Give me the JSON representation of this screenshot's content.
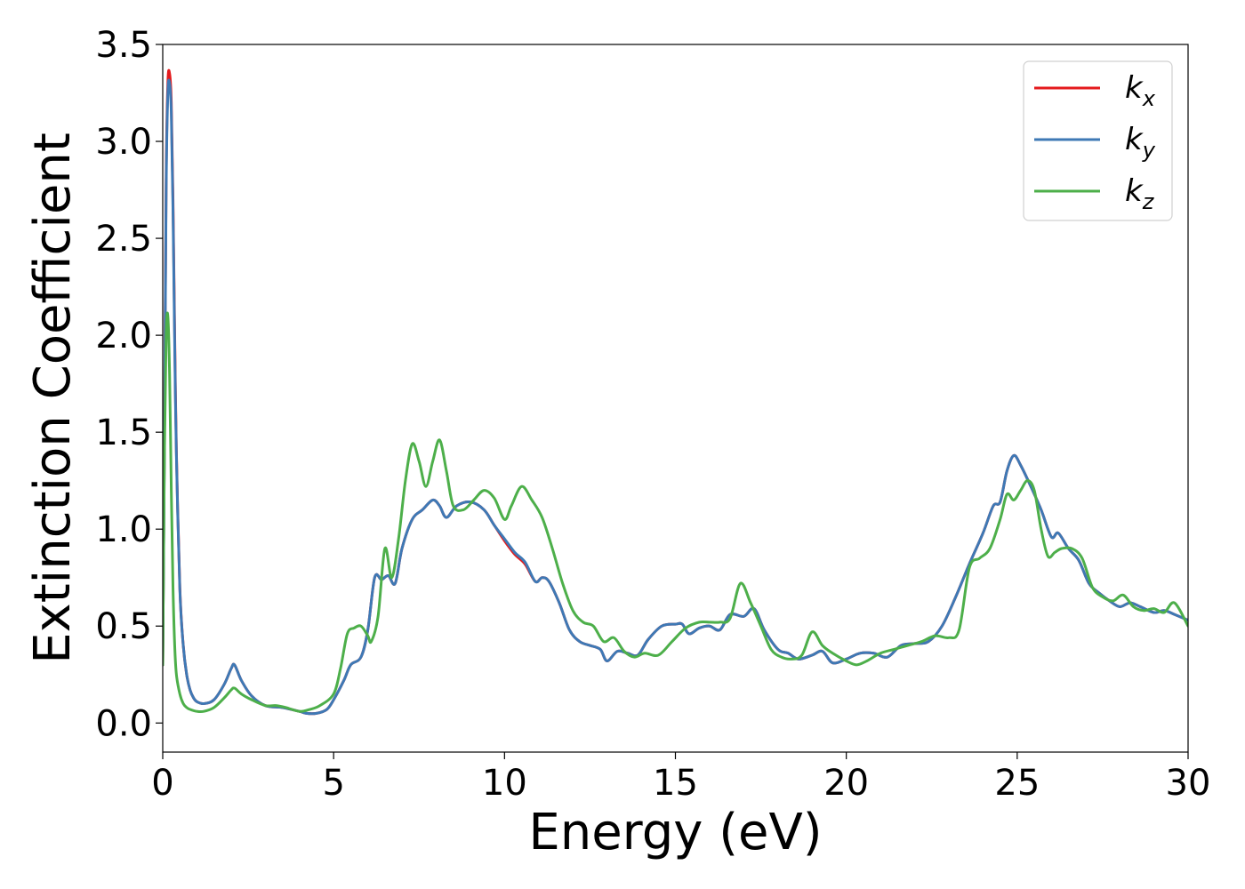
{
  "chart_data": {
    "type": "line",
    "title": "",
    "xlabel": "Energy (eV)",
    "ylabel": "Extinction Coefficient",
    "xlim": [
      0,
      30
    ],
    "ylim": [
      -0.15,
      3.5
    ],
    "xticks": [
      0,
      5,
      10,
      15,
      20,
      25,
      30
    ],
    "xtick_labels": [
      "0",
      "5",
      "10",
      "15",
      "20",
      "25",
      "30"
    ],
    "yticks": [
      0.0,
      0.5,
      1.0,
      1.5,
      2.0,
      2.5,
      3.0,
      3.5
    ],
    "ytick_labels": [
      "0.0",
      "0.5",
      "1.0",
      "1.5",
      "2.0",
      "2.5",
      "3.0",
      "3.5"
    ],
    "grid": false,
    "legend_position": "top-right",
    "series": [
      {
        "name": "k_x",
        "label_main": "k",
        "label_sub": "x",
        "color": "#e41a1c",
        "x": [
          0,
          0.05,
          0.1,
          0.15,
          0.2,
          0.25,
          0.3,
          0.35,
          0.4,
          0.5,
          0.6,
          0.7,
          0.8,
          0.9,
          1.0,
          1.2,
          1.5,
          1.8,
          2.0,
          2.1,
          2.3,
          2.6,
          3.0,
          3.5,
          4.0,
          4.2,
          4.5,
          4.8,
          5.0,
          5.3,
          5.5,
          5.8,
          6.0,
          6.2,
          6.4,
          6.6,
          6.8,
          7.0,
          7.3,
          7.6,
          7.9,
          8.1,
          8.3,
          8.6,
          9.0,
          9.4,
          9.7,
          10.0,
          10.3,
          10.6,
          10.9,
          11.1,
          11.3,
          11.6,
          11.9,
          12.2,
          12.5,
          12.8,
          13.0,
          13.3,
          13.6,
          13.9,
          14.2,
          14.6,
          15.0,
          15.2,
          15.4,
          15.7,
          16.0,
          16.3,
          16.6,
          17.0,
          17.3,
          17.6,
          18.0,
          18.3,
          18.6,
          19.0,
          19.3,
          19.6,
          20.0,
          20.4,
          20.8,
          21.2,
          21.6,
          22.0,
          22.4,
          22.8,
          23.2,
          23.6,
          24.0,
          24.3,
          24.5,
          24.7,
          24.9,
          25.1,
          25.4,
          25.7,
          26.0,
          26.2,
          26.5,
          26.8,
          27.1,
          27.4,
          27.7,
          28.0,
          28.3,
          28.6,
          29.0,
          29.3,
          29.6,
          30.0
        ],
        "y": [
          0.3,
          1.5,
          2.8,
          3.3,
          3.35,
          3.2,
          2.7,
          2.0,
          1.4,
          0.7,
          0.4,
          0.25,
          0.17,
          0.13,
          0.11,
          0.1,
          0.12,
          0.2,
          0.28,
          0.3,
          0.22,
          0.14,
          0.09,
          0.08,
          0.06,
          0.05,
          0.05,
          0.07,
          0.12,
          0.22,
          0.3,
          0.34,
          0.48,
          0.75,
          0.74,
          0.76,
          0.72,
          0.9,
          1.05,
          1.1,
          1.15,
          1.12,
          1.06,
          1.12,
          1.14,
          1.1,
          1.02,
          0.94,
          0.87,
          0.82,
          0.73,
          0.75,
          0.73,
          0.62,
          0.48,
          0.42,
          0.4,
          0.38,
          0.32,
          0.37,
          0.36,
          0.35,
          0.43,
          0.5,
          0.51,
          0.51,
          0.46,
          0.49,
          0.5,
          0.48,
          0.56,
          0.55,
          0.59,
          0.48,
          0.38,
          0.36,
          0.33,
          0.35,
          0.37,
          0.31,
          0.33,
          0.36,
          0.36,
          0.34,
          0.4,
          0.41,
          0.42,
          0.5,
          0.65,
          0.82,
          0.98,
          1.12,
          1.14,
          1.3,
          1.38,
          1.33,
          1.22,
          1.1,
          0.96,
          0.98,
          0.9,
          0.84,
          0.72,
          0.67,
          0.63,
          0.6,
          0.62,
          0.6,
          0.57,
          0.58,
          0.56,
          0.53
        ]
      },
      {
        "name": "k_y",
        "label_main": "k",
        "label_sub": "y",
        "color": "#3e79b5",
        "x": [
          0,
          0.05,
          0.1,
          0.15,
          0.2,
          0.25,
          0.3,
          0.35,
          0.4,
          0.5,
          0.6,
          0.7,
          0.8,
          0.9,
          1.0,
          1.2,
          1.5,
          1.8,
          2.0,
          2.1,
          2.3,
          2.6,
          3.0,
          3.5,
          4.0,
          4.2,
          4.5,
          4.8,
          5.0,
          5.3,
          5.5,
          5.8,
          6.0,
          6.2,
          6.4,
          6.6,
          6.8,
          7.0,
          7.3,
          7.6,
          7.9,
          8.1,
          8.3,
          8.6,
          9.0,
          9.4,
          9.7,
          10.0,
          10.3,
          10.6,
          10.9,
          11.1,
          11.3,
          11.6,
          11.9,
          12.2,
          12.5,
          12.8,
          13.0,
          13.3,
          13.6,
          13.9,
          14.2,
          14.6,
          15.0,
          15.2,
          15.4,
          15.7,
          16.0,
          16.3,
          16.6,
          17.0,
          17.3,
          17.6,
          18.0,
          18.3,
          18.6,
          19.0,
          19.3,
          19.6,
          20.0,
          20.4,
          20.8,
          21.2,
          21.6,
          22.0,
          22.4,
          22.8,
          23.2,
          23.6,
          24.0,
          24.3,
          24.5,
          24.7,
          24.9,
          25.1,
          25.4,
          25.7,
          26.0,
          26.2,
          26.5,
          26.8,
          27.1,
          27.4,
          27.7,
          28.0,
          28.3,
          28.6,
          29.0,
          29.3,
          29.6,
          30.0
        ],
        "y": [
          0.3,
          1.45,
          2.75,
          3.25,
          3.3,
          3.15,
          2.65,
          1.95,
          1.38,
          0.69,
          0.4,
          0.25,
          0.17,
          0.13,
          0.11,
          0.1,
          0.12,
          0.2,
          0.28,
          0.3,
          0.22,
          0.14,
          0.09,
          0.08,
          0.06,
          0.05,
          0.05,
          0.07,
          0.12,
          0.22,
          0.3,
          0.34,
          0.48,
          0.75,
          0.74,
          0.76,
          0.72,
          0.9,
          1.05,
          1.1,
          1.15,
          1.12,
          1.06,
          1.12,
          1.14,
          1.1,
          1.02,
          0.95,
          0.88,
          0.83,
          0.73,
          0.75,
          0.73,
          0.62,
          0.48,
          0.42,
          0.4,
          0.38,
          0.32,
          0.37,
          0.36,
          0.35,
          0.43,
          0.5,
          0.51,
          0.51,
          0.46,
          0.49,
          0.5,
          0.48,
          0.56,
          0.55,
          0.59,
          0.48,
          0.38,
          0.36,
          0.33,
          0.35,
          0.37,
          0.31,
          0.33,
          0.36,
          0.36,
          0.34,
          0.4,
          0.41,
          0.42,
          0.5,
          0.65,
          0.82,
          0.98,
          1.12,
          1.14,
          1.3,
          1.38,
          1.33,
          1.22,
          1.1,
          0.96,
          0.98,
          0.9,
          0.84,
          0.72,
          0.67,
          0.63,
          0.6,
          0.62,
          0.6,
          0.57,
          0.58,
          0.56,
          0.53
        ]
      },
      {
        "name": "k_z",
        "label_main": "k",
        "label_sub": "z",
        "color": "#4daf4a",
        "x": [
          0,
          0.05,
          0.1,
          0.15,
          0.2,
          0.25,
          0.3,
          0.35,
          0.4,
          0.5,
          0.6,
          0.7,
          0.8,
          1.0,
          1.2,
          1.5,
          1.8,
          2.0,
          2.1,
          2.3,
          2.6,
          3.0,
          3.3,
          3.6,
          4.0,
          4.3,
          4.6,
          5.0,
          5.2,
          5.4,
          5.6,
          5.8,
          6.0,
          6.1,
          6.3,
          6.5,
          6.7,
          6.9,
          7.1,
          7.3,
          7.5,
          7.7,
          7.9,
          8.1,
          8.3,
          8.5,
          8.8,
          9.1,
          9.4,
          9.7,
          10.0,
          10.2,
          10.5,
          10.8,
          11.1,
          11.4,
          11.7,
          12.0,
          12.3,
          12.6,
          12.9,
          13.2,
          13.5,
          13.8,
          14.1,
          14.5,
          14.9,
          15.3,
          15.7,
          16.0,
          16.3,
          16.6,
          16.9,
          17.2,
          17.5,
          17.8,
          18.1,
          18.4,
          18.7,
          19.0,
          19.3,
          19.6,
          20.0,
          20.3,
          20.6,
          21.0,
          21.4,
          21.8,
          22.2,
          22.6,
          23.0,
          23.3,
          23.6,
          23.9,
          24.2,
          24.5,
          24.7,
          24.9,
          25.1,
          25.3,
          25.5,
          25.7,
          25.9,
          26.1,
          26.3,
          26.6,
          26.9,
          27.2,
          27.5,
          27.8,
          28.1,
          28.4,
          28.7,
          29.0,
          29.3,
          29.6,
          30.0
        ],
        "y": [
          0.3,
          1.4,
          2.0,
          2.1,
          1.8,
          1.2,
          0.7,
          0.4,
          0.25,
          0.15,
          0.1,
          0.08,
          0.07,
          0.06,
          0.06,
          0.08,
          0.13,
          0.17,
          0.18,
          0.15,
          0.12,
          0.09,
          0.09,
          0.08,
          0.06,
          0.07,
          0.09,
          0.15,
          0.28,
          0.46,
          0.49,
          0.5,
          0.45,
          0.42,
          0.55,
          0.9,
          0.75,
          0.95,
          1.25,
          1.44,
          1.35,
          1.22,
          1.35,
          1.46,
          1.3,
          1.12,
          1.1,
          1.15,
          1.2,
          1.16,
          1.05,
          1.12,
          1.22,
          1.15,
          1.06,
          0.9,
          0.72,
          0.58,
          0.52,
          0.5,
          0.42,
          0.44,
          0.37,
          0.34,
          0.36,
          0.35,
          0.42,
          0.49,
          0.52,
          0.52,
          0.52,
          0.54,
          0.72,
          0.62,
          0.5,
          0.38,
          0.34,
          0.33,
          0.35,
          0.47,
          0.4,
          0.36,
          0.32,
          0.3,
          0.32,
          0.36,
          0.38,
          0.4,
          0.42,
          0.45,
          0.44,
          0.48,
          0.8,
          0.85,
          0.9,
          1.05,
          1.18,
          1.15,
          1.2,
          1.25,
          1.2,
          1.0,
          0.86,
          0.88,
          0.9,
          0.9,
          0.85,
          0.7,
          0.65,
          0.63,
          0.66,
          0.6,
          0.58,
          0.59,
          0.57,
          0.62,
          0.5
        ]
      }
    ]
  }
}
